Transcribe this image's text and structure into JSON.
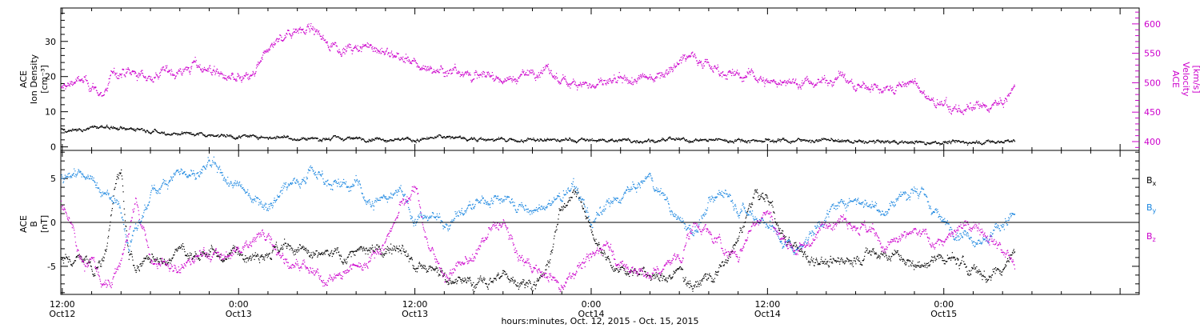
{
  "figure": {
    "xlabel": "hours:minutes, Oct. 12, 2015 - Oct. 15, 2015",
    "xticks": [
      {
        "time": "12:00",
        "day": "Oct12",
        "h": 12
      },
      {
        "time": "0:00",
        "day": "Oct13",
        "h": 24
      },
      {
        "time": "12:00",
        "day": "Oct13",
        "h": 36
      },
      {
        "time": "0:00",
        "day": "Oct14",
        "h": 48
      },
      {
        "time": "12:00",
        "day": "Oct14",
        "h": 60
      },
      {
        "time": "0:00",
        "day": "Oct15",
        "h": 72
      }
    ],
    "xlim_hours": [
      11.9,
      85.3
    ],
    "data_end_hours": 76.8
  },
  "chart_data": [
    {
      "type": "scatter",
      "panel": "top",
      "ylabel_left": [
        "ACE",
        "Ion Density",
        "[cm⁻³]"
      ],
      "ylabel_right": [
        "ACE",
        "Velocity",
        "[km/s]"
      ],
      "ylim_left": [
        -1,
        39.5
      ],
      "yticks_left": [
        0,
        10,
        20,
        30
      ],
      "ylim_right": [
        385,
        627
      ],
      "yticks_right": [
        400,
        450,
        500,
        550,
        600
      ],
      "series": [
        {
          "axis": "left",
          "color": "#000000",
          "x": [
            11.9,
            13,
            14,
            15,
            16,
            17,
            18,
            19,
            20,
            21,
            22,
            23,
            24,
            25,
            26,
            27,
            28,
            29,
            30,
            32,
            34,
            36,
            38,
            40,
            42,
            44,
            46,
            48,
            50,
            52,
            54,
            56,
            58,
            60,
            62,
            64,
            66,
            68,
            70,
            72,
            74,
            76,
            76.8
          ],
          "y": [
            5,
            5,
            5.5,
            6,
            5,
            5.5,
            5,
            4,
            4,
            4,
            3.5,
            3.5,
            3,
            3,
            3,
            3,
            2.5,
            2.5,
            2.5,
            2.5,
            2.5,
            2,
            3,
            2.5,
            2,
            2,
            2,
            2,
            2,
            2,
            2,
            2,
            2,
            2,
            2,
            2,
            1.5,
            1.5,
            1.5,
            1.5,
            1.5,
            1.5,
            2
          ]
        },
        {
          "axis": "right",
          "color": "#cc00cc",
          "x": [
            11.9,
            12.5,
            13,
            14,
            14.5,
            15,
            15.5,
            16,
            17,
            18,
            19,
            20,
            21,
            22,
            23,
            24,
            25,
            26,
            27,
            28,
            29,
            30,
            31,
            32,
            33,
            34,
            35,
            36,
            37,
            38,
            39,
            40,
            41,
            42,
            43,
            44,
            45,
            46,
            47,
            48,
            49,
            50,
            51,
            52,
            53,
            54,
            55,
            56,
            57,
            58,
            59,
            60,
            61,
            62,
            63,
            64,
            65,
            66,
            67,
            68,
            69,
            70,
            71,
            72,
            73,
            74,
            75,
            76,
            76.8
          ],
          "y": [
            490,
            500,
            505,
            495,
            480,
            490,
            520,
            515,
            515,
            510,
            520,
            520,
            530,
            525,
            510,
            505,
            510,
            560,
            580,
            595,
            590,
            570,
            560,
            555,
            565,
            550,
            545,
            530,
            525,
            520,
            525,
            510,
            515,
            505,
            510,
            520,
            520,
            500,
            505,
            495,
            500,
            500,
            505,
            510,
            520,
            540,
            550,
            530,
            520,
            510,
            515,
            500,
            505,
            500,
            500,
            505,
            515,
            490,
            495,
            490,
            495,
            500,
            470,
            460,
            455,
            455,
            460,
            465,
            490
          ]
        }
      ]
    },
    {
      "type": "scatter",
      "panel": "bottom",
      "ylabel_left": [
        "ACE",
        "B",
        "[nT]"
      ],
      "ylim": [
        -8.2,
        8.2
      ],
      "yticks": [
        -5,
        0,
        5
      ],
      "zero_line": true,
      "legend": [
        {
          "label": "B",
          "sub": "x",
          "color": "#000000"
        },
        {
          "label": "B",
          "sub": "y",
          "color": "#1a86e0"
        },
        {
          "label": "B",
          "sub": "z",
          "color": "#cc00cc"
        }
      ],
      "legend_placement": "right",
      "series": [
        {
          "name": "Bx",
          "color": "#000000",
          "x": [
            11.9,
            12.5,
            13,
            13.5,
            14,
            14.5,
            15,
            15.5,
            16,
            16.5,
            17,
            18,
            19,
            20,
            21,
            22,
            23,
            24,
            25,
            26,
            27,
            28,
            29,
            30,
            31,
            32,
            33,
            34,
            35,
            36,
            37,
            38,
            39,
            40,
            41,
            42,
            43,
            44,
            45,
            46,
            47,
            48,
            49,
            50,
            51,
            52,
            53,
            54,
            55,
            56,
            57,
            58,
            59,
            60,
            61,
            62,
            63,
            64,
            65,
            66,
            67,
            68,
            69,
            70,
            71,
            72,
            73,
            74,
            75,
            76,
            76.8
          ],
          "y": [
            -4,
            -4.5,
            -4,
            -4.5,
            -5,
            -5,
            -3,
            4,
            6,
            -4,
            -5,
            -4,
            -4.5,
            -3,
            -4,
            -3,
            -4,
            -3,
            -3.5,
            -3,
            -3,
            -3,
            -4,
            -3.5,
            -4,
            -3,
            -3.5,
            -3,
            -2,
            -5,
            -5.5,
            -6,
            -6.5,
            -7,
            -6.5,
            -6,
            -6.5,
            -7,
            -5,
            2,
            4,
            -1,
            -4,
            -5,
            -5.5,
            -6,
            -6.5,
            -5.5,
            -7,
            -6,
            -5,
            -2,
            3,
            3,
            -2,
            -3,
            -4,
            -4.5,
            -4.5,
            -4,
            -3.5,
            -3.5,
            -4,
            -5,
            -4.5,
            -4,
            -4.5,
            -5.5,
            -6,
            -5,
            -3
          ]
        },
        {
          "name": "By",
          "color": "#1a86e0",
          "x": [
            11.9,
            12.5,
            13,
            14,
            15,
            16,
            16.5,
            17,
            18,
            19,
            20,
            21,
            22,
            23,
            24,
            25,
            26,
            27,
            28,
            29,
            30,
            31,
            32,
            33,
            34,
            35,
            36,
            37,
            38,
            39,
            40,
            41,
            42,
            43,
            44,
            45,
            46,
            47,
            48,
            49,
            50,
            51,
            52,
            53,
            54,
            55,
            56,
            57,
            58,
            59,
            60,
            61,
            62,
            63,
            64,
            65,
            66,
            67,
            68,
            69,
            70,
            71,
            72,
            73,
            74,
            75,
            76,
            76.8
          ],
          "y": [
            5,
            5.5,
            6,
            5,
            3,
            2,
            -3,
            -1,
            3,
            5,
            6,
            5,
            6.5,
            5,
            4,
            3,
            2,
            4,
            5,
            6,
            5,
            4,
            4.5,
            2,
            3,
            4,
            0,
            1,
            0,
            1,
            2,
            2.5,
            3,
            2,
            1,
            2,
            3,
            4,
            0,
            1.5,
            3,
            4,
            5,
            3,
            0,
            -1,
            2,
            4,
            2,
            1,
            0,
            -2,
            -3,
            -1,
            1,
            2,
            3,
            2,
            1.5,
            3,
            4,
            2,
            0,
            -1,
            -1.5,
            -2,
            0,
            1
          ]
        },
        {
          "name": "Bz",
          "color": "#cc00cc",
          "x": [
            11.9,
            12.5,
            13,
            13.5,
            14,
            14.5,
            15,
            15.5,
            16,
            16.5,
            17,
            18,
            19,
            20,
            21,
            22,
            23,
            24,
            25,
            26,
            27,
            28,
            29,
            30,
            31,
            32,
            33,
            34,
            35,
            36,
            37,
            38,
            39,
            40,
            41,
            42,
            43,
            44,
            45,
            46,
            47,
            48,
            49,
            50,
            51,
            52,
            53,
            54,
            55,
            56,
            57,
            58,
            59,
            60,
            61,
            62,
            63,
            64,
            65,
            66,
            67,
            68,
            69,
            70,
            71,
            72,
            73,
            74,
            75,
            76,
            76.8
          ],
          "y": [
            2,
            0,
            -3,
            -5,
            -4,
            -6,
            -7,
            -6,
            -4,
            -1,
            2,
            -4,
            -5,
            -5.5,
            -4,
            -3.5,
            -4,
            -3,
            -2,
            -1,
            -4,
            -5,
            -6,
            -6.5,
            -6,
            -5,
            -4,
            -2,
            2,
            4,
            -3,
            -6,
            -5,
            -4,
            -1,
            0,
            -4,
            -5,
            -6,
            -7,
            -5,
            -4,
            -2,
            -5,
            -5.5,
            -6,
            -5,
            -4,
            0,
            -1,
            -3,
            -4,
            0,
            1,
            -2,
            -3,
            -2,
            0,
            1,
            0,
            -1,
            -3,
            -2,
            -1,
            -2,
            -2,
            -1,
            0,
            -1,
            -3,
            -5
          ]
        }
      ]
    }
  ]
}
